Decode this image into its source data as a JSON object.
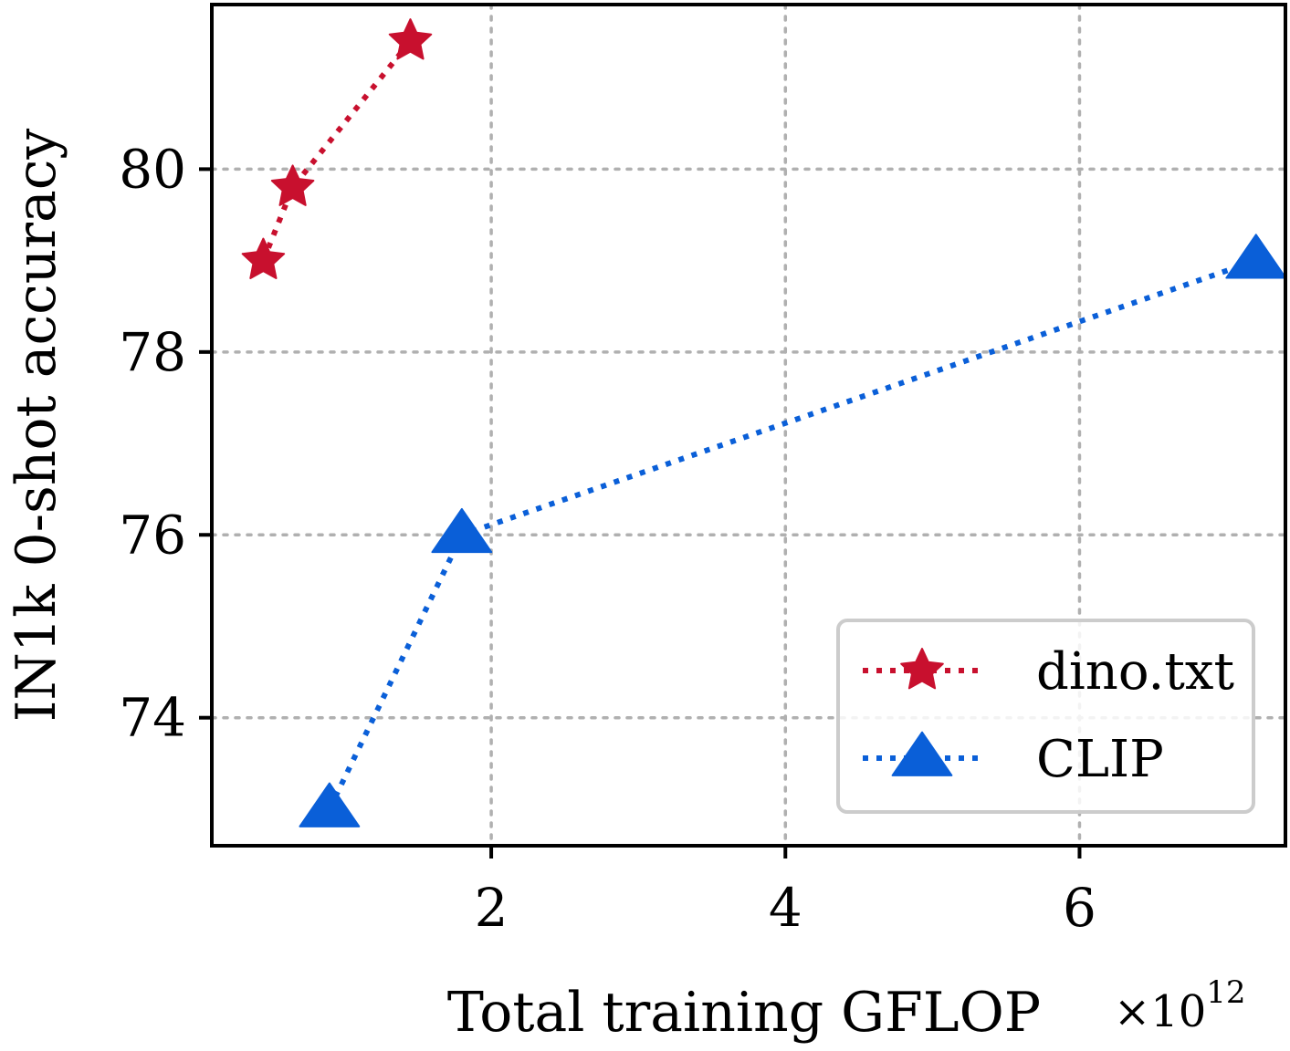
{
  "chart_data": {
    "type": "line",
    "title": "",
    "xlabel": "Total training GFLOP",
    "ylabel": "IN1k 0-shot accuracy",
    "x_multiplier": {
      "base": "×10",
      "exponent": "12"
    },
    "xlim": [
      0.1,
      7.4
    ],
    "ylim": [
      72.6,
      81.8
    ],
    "xticks": [
      2,
      4,
      6
    ],
    "xtick_labels": [
      "2",
      "4",
      "6"
    ],
    "yticks": [
      74,
      76,
      78,
      80
    ],
    "ytick_labels": [
      "74",
      "76",
      "78",
      "80"
    ],
    "grid": true,
    "grid_style": "dotted",
    "legend_position": "lower-right",
    "series": [
      {
        "name": "dino.txt",
        "color": "#c8102e",
        "marker": "star",
        "line_style": "dotted",
        "x": [
          0.45,
          0.65,
          1.45
        ],
        "y": [
          79.0,
          79.8,
          81.4
        ]
      },
      {
        "name": "CLIP",
        "color": "#0a5fd8",
        "marker": "triangle",
        "line_style": "dotted",
        "x": [
          0.9,
          1.8,
          7.2
        ],
        "y": [
          73.0,
          76.0,
          79.0
        ]
      }
    ]
  }
}
